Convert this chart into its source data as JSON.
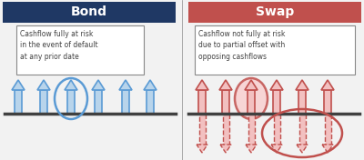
{
  "bond_title": "Bond",
  "swap_title": "Swap",
  "bond_header_color": "#1f3864",
  "swap_header_color": "#c0504d",
  "bond_arrow_face": "#b8d4eb",
  "bond_arrow_edge": "#5b9bd5",
  "swap_up_face": "#f2c0c0",
  "swap_up_edge": "#c0504d",
  "swap_dn_face": "#f2c0c0",
  "swap_dn_edge": "#c0504d",
  "bond_text": "Cashflow fully at risk\nin the event of default\nat any prior date",
  "swap_text": "Cashflow not fully at risk\ndue to partial offset with\nopposing cashflows",
  "bg_color": "#f2f2f2",
  "text_color": "#404040",
  "title_text_color": "#ffffff",
  "divider_color": "#888888",
  "baseline_color": "#404040"
}
